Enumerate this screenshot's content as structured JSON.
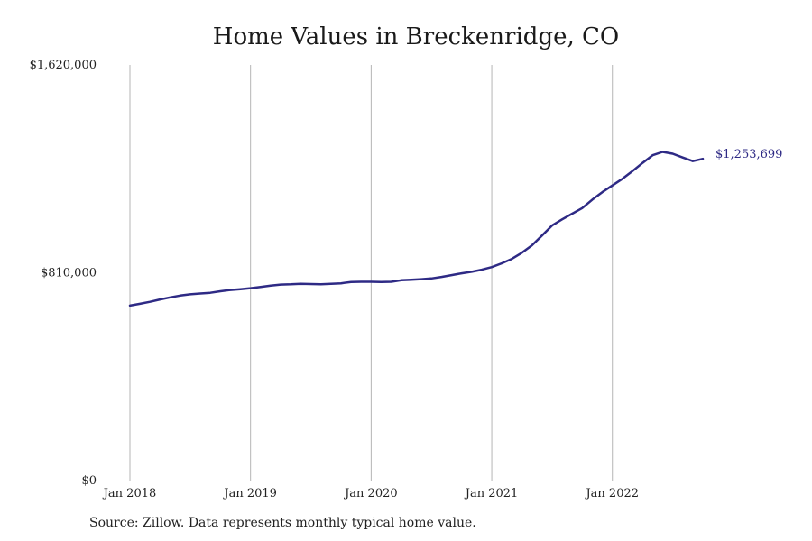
{
  "chart_data": {
    "type": "line",
    "title": "Home Values in Breckenridge, CO",
    "xlabel": "",
    "ylabel": "",
    "ylim": [
      0,
      1620000
    ],
    "yticks": [
      {
        "value": 0,
        "label": "$0"
      },
      {
        "value": 810000,
        "label": "$810,000"
      },
      {
        "value": 1620000,
        "label": "$1,620,000"
      }
    ],
    "xticks": [
      {
        "x": "2018-01",
        "label": "Jan 2018"
      },
      {
        "x": "2019-01",
        "label": "Jan 2019"
      },
      {
        "x": "2020-01",
        "label": "Jan 2020"
      },
      {
        "x": "2021-01",
        "label": "Jan 2021"
      },
      {
        "x": "2022-01",
        "label": "Jan 2022"
      }
    ],
    "xlim": [
      "2018-01",
      "2022-10"
    ],
    "grid": "vertical",
    "color": "#2e2a85",
    "end_label": "$1,253,699",
    "series": [
      {
        "x": [
          "2018-01",
          "2018-02",
          "2018-03",
          "2018-04",
          "2018-05",
          "2018-06",
          "2018-07",
          "2018-08",
          "2018-09",
          "2018-10",
          "2018-11",
          "2018-12",
          "2019-01",
          "2019-02",
          "2019-03",
          "2019-04",
          "2019-05",
          "2019-06",
          "2019-07",
          "2019-08",
          "2019-09",
          "2019-10",
          "2019-11",
          "2019-12",
          "2020-01",
          "2020-02",
          "2020-03",
          "2020-04",
          "2020-05",
          "2020-06",
          "2020-07",
          "2020-08",
          "2020-09",
          "2020-10",
          "2020-11",
          "2020-12",
          "2021-01",
          "2021-02",
          "2021-03",
          "2021-04",
          "2021-05",
          "2021-06",
          "2021-07",
          "2021-08",
          "2021-09",
          "2021-10",
          "2021-11",
          "2021-12",
          "2022-01",
          "2022-02",
          "2022-03",
          "2022-04",
          "2022-05",
          "2022-06",
          "2022-07",
          "2022-08",
          "2022-09",
          "2022-10"
        ],
        "values": [
          682000,
          689000,
          697000,
          706000,
          714000,
          721000,
          726000,
          729000,
          732000,
          738000,
          743000,
          746000,
          750000,
          755000,
          760000,
          764000,
          765000,
          767000,
          766000,
          765000,
          767000,
          769000,
          774000,
          775000,
          775000,
          774000,
          775000,
          781000,
          783000,
          785000,
          788000,
          794000,
          801000,
          808000,
          814000,
          822000,
          832000,
          847000,
          864000,
          888000,
          917000,
          955000,
          994000,
          1018000,
          1040000,
          1062000,
          1095000,
          1124000,
          1150000,
          1176000,
          1206000,
          1238000,
          1268000,
          1281000,
          1274000,
          1259000,
          1245000,
          1253699
        ]
      }
    ]
  },
  "source": "Source: Zillow. Data represents monthly typical home value."
}
